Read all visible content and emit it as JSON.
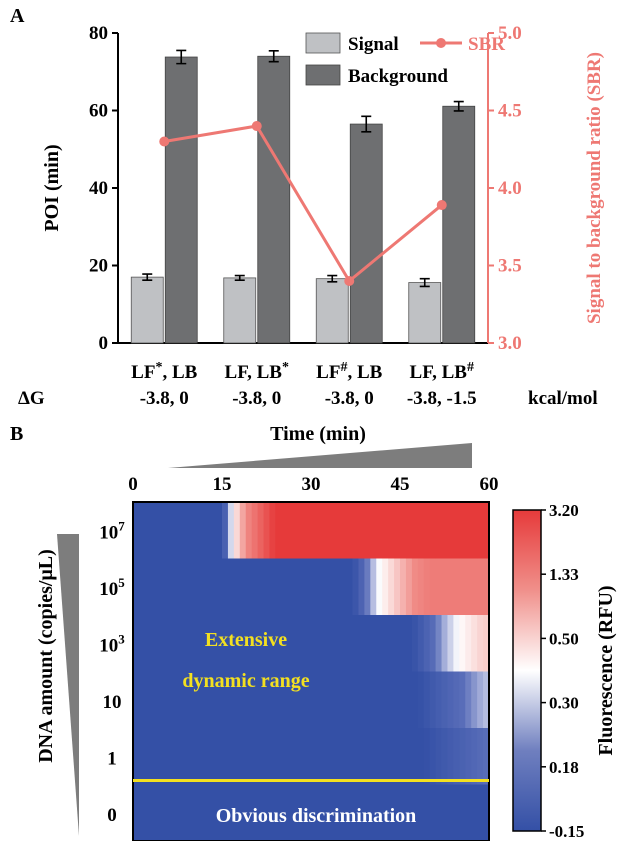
{
  "colors": {
    "signal": "#bfc1c4",
    "background": "#6e6f71",
    "sbr": "#ee7873",
    "axis": "#000000",
    "heat_low": "#3450a6",
    "heat_mid": "#ffffff",
    "heat_high": "#e63a3a",
    "annotation": "#f3e020",
    "wedge": "#7d7d7d"
  },
  "chart_data": [
    {
      "panel": "A",
      "type": "bar",
      "xlabel": "",
      "ylabel": "POI (min)",
      "y2label": "Signal to background ratio (SBR)",
      "ylim": [
        0,
        80
      ],
      "y2lim": [
        3.0,
        5.0
      ],
      "yticks": [
        "0",
        "20",
        "40",
        "60",
        "80"
      ],
      "y2ticks": [
        "3.0",
        "3.5",
        "4.0",
        "4.5",
        "5.0"
      ],
      "categories": [
        "LF*, LB",
        "LF, LB*",
        "LF#, LB",
        "LF, LB#"
      ],
      "category_labels": [
        {
          "main": "LF",
          "sup": "*",
          "rest": ", LB"
        },
        {
          "main": "LF, LB",
          "sup": "*",
          "rest": ""
        },
        {
          "main": "LF",
          "sup": "#",
          "rest": ", LB"
        },
        {
          "main": "LF, LB",
          "sup": "#",
          "rest": ""
        }
      ],
      "dg_prefix": "ΔG",
      "dg_values": [
        "-3.8, 0",
        "-3.8, 0",
        "-3.8, 0",
        "-3.8, -1.5"
      ],
      "dg_unit": "kcal/mol",
      "series": [
        {
          "name": "Signal",
          "values": [
            17,
            16.8,
            16.6,
            15.6
          ],
          "errors": [
            0.8,
            0.6,
            0.8,
            1.0
          ]
        },
        {
          "name": "Background",
          "values": [
            73.8,
            74.0,
            56.5,
            61.1
          ],
          "errors": [
            1.7,
            1.4,
            2.0,
            1.2
          ]
        },
        {
          "name": "SBR",
          "type": "line",
          "axis": "right",
          "values": [
            4.3,
            4.4,
            3.4,
            3.89
          ]
        }
      ],
      "legend": "top-right"
    },
    {
      "panel": "B",
      "type": "heatmap",
      "title": "Time (min)",
      "ylabel": "DNA amount (copies/μL)",
      "xticks": [
        "0",
        "15",
        "30",
        "45",
        "60"
      ],
      "xlim": [
        0,
        60
      ],
      "rows": [
        {
          "label_base": "10",
          "label_exp": "7",
          "onset": 15,
          "rise": 9,
          "max": 3.2
        },
        {
          "label_base": "10",
          "label_exp": "5",
          "onset": 37,
          "rise": 13,
          "max": 1.7
        },
        {
          "label_base": "10",
          "label_exp": "3",
          "onset": 47,
          "rise": 12,
          "max": 0.85
        },
        {
          "label_base": "10",
          "label_exp": "",
          "onset": 48,
          "rise": 14,
          "max": 0.45
        },
        {
          "label_base": "1",
          "label_exp": "",
          "onset": 49,
          "rise": 15,
          "max": 0.3
        },
        {
          "label_base": "0",
          "label_exp": "",
          "onset": 99,
          "rise": 10,
          "max": -0.15
        }
      ],
      "colorbar_label": "Fluorescence (RFU)",
      "colorbar_ticks": [
        "3.20",
        "1.33",
        "0.50",
        "0.30",
        "0.18",
        "-0.15"
      ],
      "annotation_range_line1": "Extensive",
      "annotation_range_line2": "dynamic range",
      "annotation_bottom": "Obvious discrimination"
    }
  ],
  "panel_labels": [
    "A",
    "B"
  ]
}
